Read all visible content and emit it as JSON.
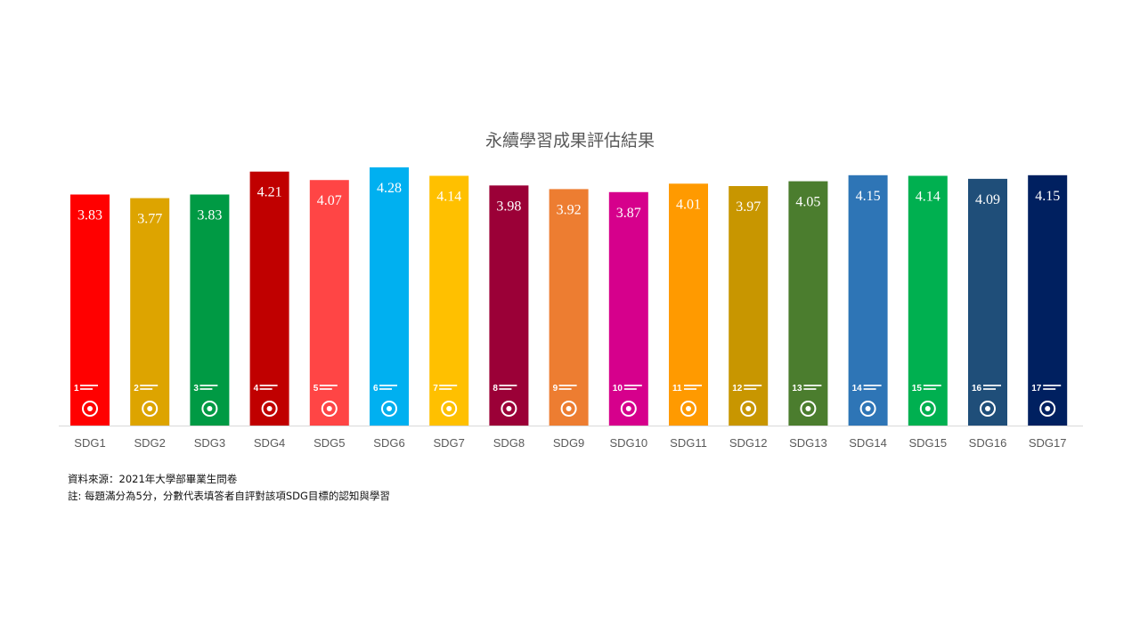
{
  "chart_data": {
    "type": "bar",
    "title": "永續學習成果評估結果",
    "xlabel": "",
    "ylabel": "",
    "categories": [
      "SDG1",
      "SDG2",
      "SDG3",
      "SDG4",
      "SDG5",
      "SDG6",
      "SDG7",
      "SDG8",
      "SDG9",
      "SDG10",
      "SDG11",
      "SDG12",
      "SDG13",
      "SDG14",
      "SDG15",
      "SDG16",
      "SDG17"
    ],
    "values": [
      3.83,
      3.77,
      3.83,
      4.21,
      4.07,
      4.28,
      4.14,
      3.98,
      3.92,
      3.87,
      4.01,
      3.97,
      4.05,
      4.15,
      4.14,
      4.09,
      4.15
    ],
    "data_labels": [
      "3.83",
      "3.77",
      "3.83",
      "4.21",
      "4.07",
      "4.28",
      "4.14",
      "3.98",
      "3.92",
      "3.87",
      "4.01",
      "3.97",
      "4.05",
      "4.15",
      "4.14",
      "4.09",
      "4.15"
    ],
    "colors": [
      "#FF0000",
      "#DDA400",
      "#009A44",
      "#C00000",
      "#FF4545",
      "#00B0F0",
      "#FFC000",
      "#9B0037",
      "#ED7D31",
      "#D6008C",
      "#FF9A00",
      "#C89600",
      "#4B7D2E",
      "#2E75B6",
      "#00B050",
      "#1F4E79",
      "#002060"
    ],
    "goal_icons": [
      "no-poverty-icon",
      "zero-hunger-icon",
      "good-health-icon",
      "quality-education-icon",
      "gender-equality-icon",
      "clean-water-icon",
      "clean-energy-icon",
      "decent-work-icon",
      "industry-icon",
      "reduced-inequalities-icon",
      "sustainable-cities-icon",
      "responsible-consumption-icon",
      "climate-action-icon",
      "life-below-water-icon",
      "life-on-land-icon",
      "peace-justice-icon",
      "partnerships-icon"
    ],
    "ylim": [
      0,
      4.28
    ],
    "grid": false,
    "legend": "none"
  },
  "notes": {
    "source": "資料來源：2021年大學部畢業生問卷",
    "note": "註: 每題滿分為5分，分數代表填答者自評對該項SDG目標的認知與學習"
  }
}
